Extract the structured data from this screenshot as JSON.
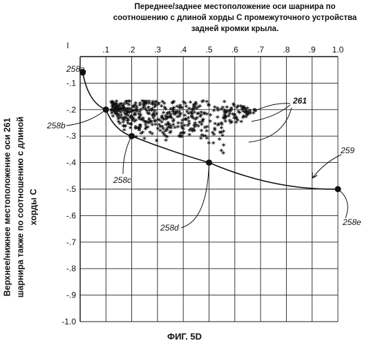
{
  "chart_data": {
    "type": "scatter",
    "title": [
      "Переднее/заднее местоположение оси шарнира по",
      "соотношению с длиной хорды С промежуточного устройства",
      "задней кромки крыла."
    ],
    "ylabel": [
      "Верхнее/нижнее местоположение оси  261",
      "шарнира также по соотношению с длиной",
      "хорды С"
    ],
    "xlim": [
      0,
      1.0
    ],
    "ylim": [
      -1.0,
      0
    ],
    "grid": true,
    "x_ticks": [
      {
        "v": 0.1,
        "label": ".1"
      },
      {
        "v": 0.2,
        "label": ".2"
      },
      {
        "v": 0.3,
        "label": ".3"
      },
      {
        "v": 0.4,
        "label": ".4"
      },
      {
        "v": 0.5,
        "label": ".5"
      },
      {
        "v": 0.6,
        "label": ".6"
      },
      {
        "v": 0.7,
        "label": ".7"
      },
      {
        "v": 0.8,
        "label": ".8"
      },
      {
        "v": 0.9,
        "label": ".9"
      },
      {
        "v": 1.0,
        "label": "1.0"
      }
    ],
    "y_ticks": [
      {
        "v": -0.1,
        "label": "-.1"
      },
      {
        "v": -0.2,
        "label": "-.2"
      },
      {
        "v": -0.3,
        "label": "-.3"
      },
      {
        "v": -0.4,
        "label": "-.4"
      },
      {
        "v": -0.5,
        "label": "-.5"
      },
      {
        "v": -0.6,
        "label": "-.6"
      },
      {
        "v": -0.7,
        "label": "-.7"
      },
      {
        "v": -0.8,
        "label": "-.8"
      },
      {
        "v": -0.9,
        "label": "-.9"
      },
      {
        "v": -1.0,
        "label": "-1.0"
      }
    ],
    "corner_label": "I",
    "boundary_points": [
      {
        "x": 0.01,
        "y": -0.06,
        "label": "258a"
      },
      {
        "x": 0.1,
        "y": -0.2,
        "label": "258b"
      },
      {
        "x": 0.2,
        "y": -0.3,
        "label": "258c"
      },
      {
        "x": 0.5,
        "y": -0.4,
        "label": "258d"
      },
      {
        "x": 1.0,
        "y": -0.5,
        "label": "258e"
      }
    ],
    "curve_label": "259",
    "scatter_label": "261",
    "scatter_region": {
      "x_range": [
        0.12,
        0.68
      ],
      "y_top": -0.17,
      "marker": "*"
    },
    "figure_caption": "ФИГ. 5D"
  }
}
